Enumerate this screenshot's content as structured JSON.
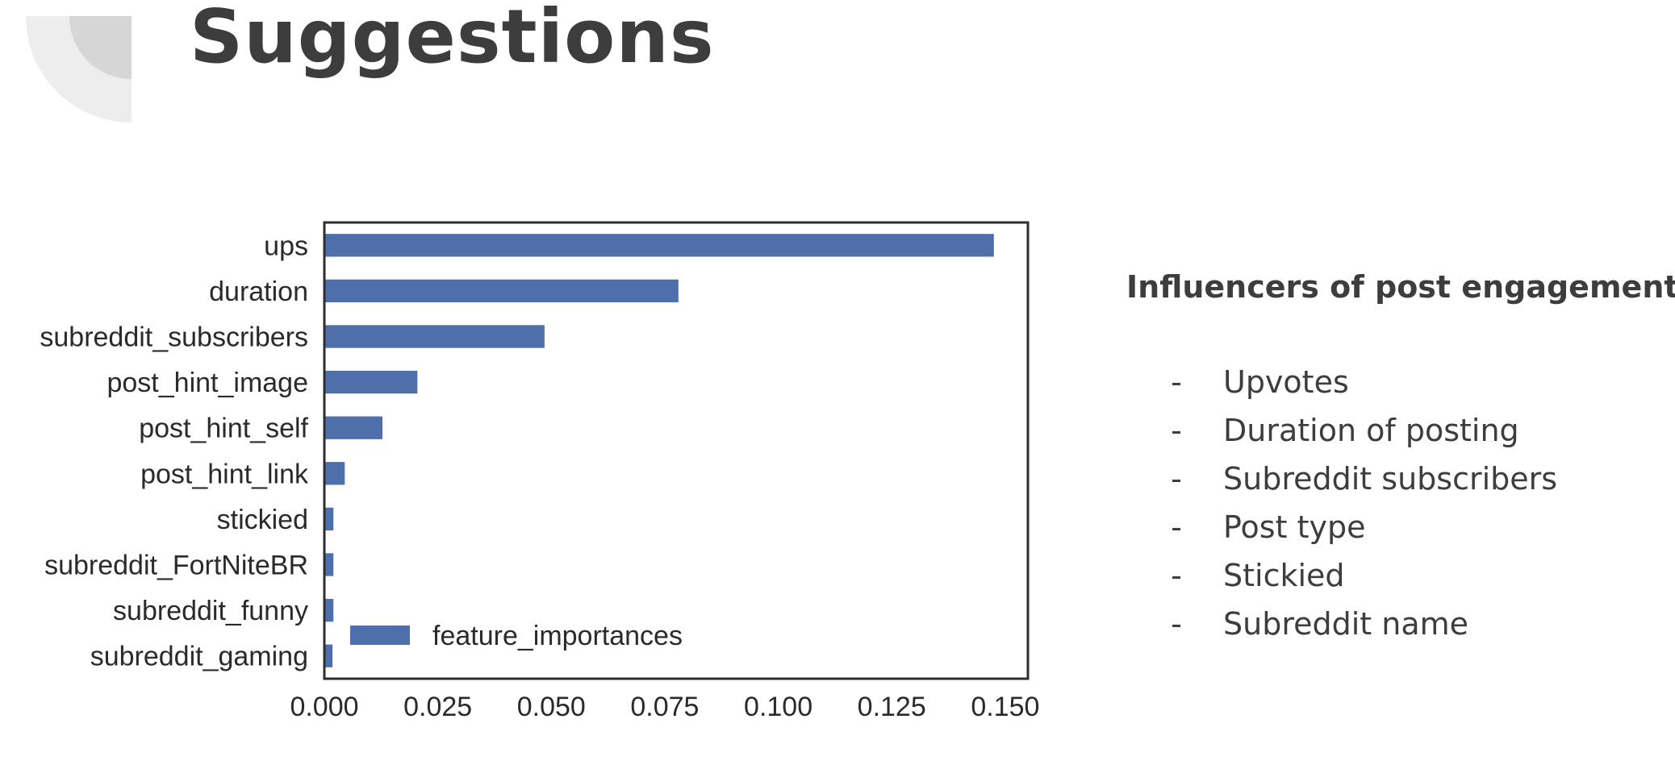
{
  "slide": {
    "title": "Suggestions"
  },
  "colors": {
    "bar": "#4f6faa",
    "axis": "#2e2e2e",
    "text": "#3d3d3d",
    "decoration_outer": "#ededed",
    "decoration_inner": "#d6d6d6"
  },
  "chart_data": {
    "type": "bar",
    "orientation": "horizontal",
    "title": "",
    "xlabel": "",
    "ylabel": "",
    "categories": [
      "ups",
      "duration",
      "subreddit_subscribers",
      "post_hint_image",
      "post_hint_self",
      "post_hint_link",
      "stickied",
      "subreddit_FortNiteBR",
      "subreddit_funny",
      "subreddit_gaming"
    ],
    "series": [
      {
        "name": "feature_importances",
        "values": [
          0.1475,
          0.078,
          0.0485,
          0.0205,
          0.0128,
          0.0045,
          0.002,
          0.002,
          0.002,
          0.0018
        ]
      }
    ],
    "xlim": [
      0,
      0.155
    ],
    "x_ticks": [
      0,
      0.025,
      0.05,
      0.075,
      0.1,
      0.125,
      0.15
    ],
    "x_tick_labels": [
      "0.000",
      "0.025",
      "0.050",
      "0.075",
      "0.100",
      "0.125",
      "0.150"
    ],
    "grid": false,
    "legend": {
      "position": "lower-left",
      "entries": [
        "feature_importances"
      ]
    }
  },
  "panel": {
    "heading": "Influencers of post engagement",
    "bullet_marker": "-",
    "items": [
      "Upvotes",
      "Duration of posting",
      "Subreddit subscribers",
      "Post type",
      "Stickied",
      "Subreddit name"
    ]
  }
}
